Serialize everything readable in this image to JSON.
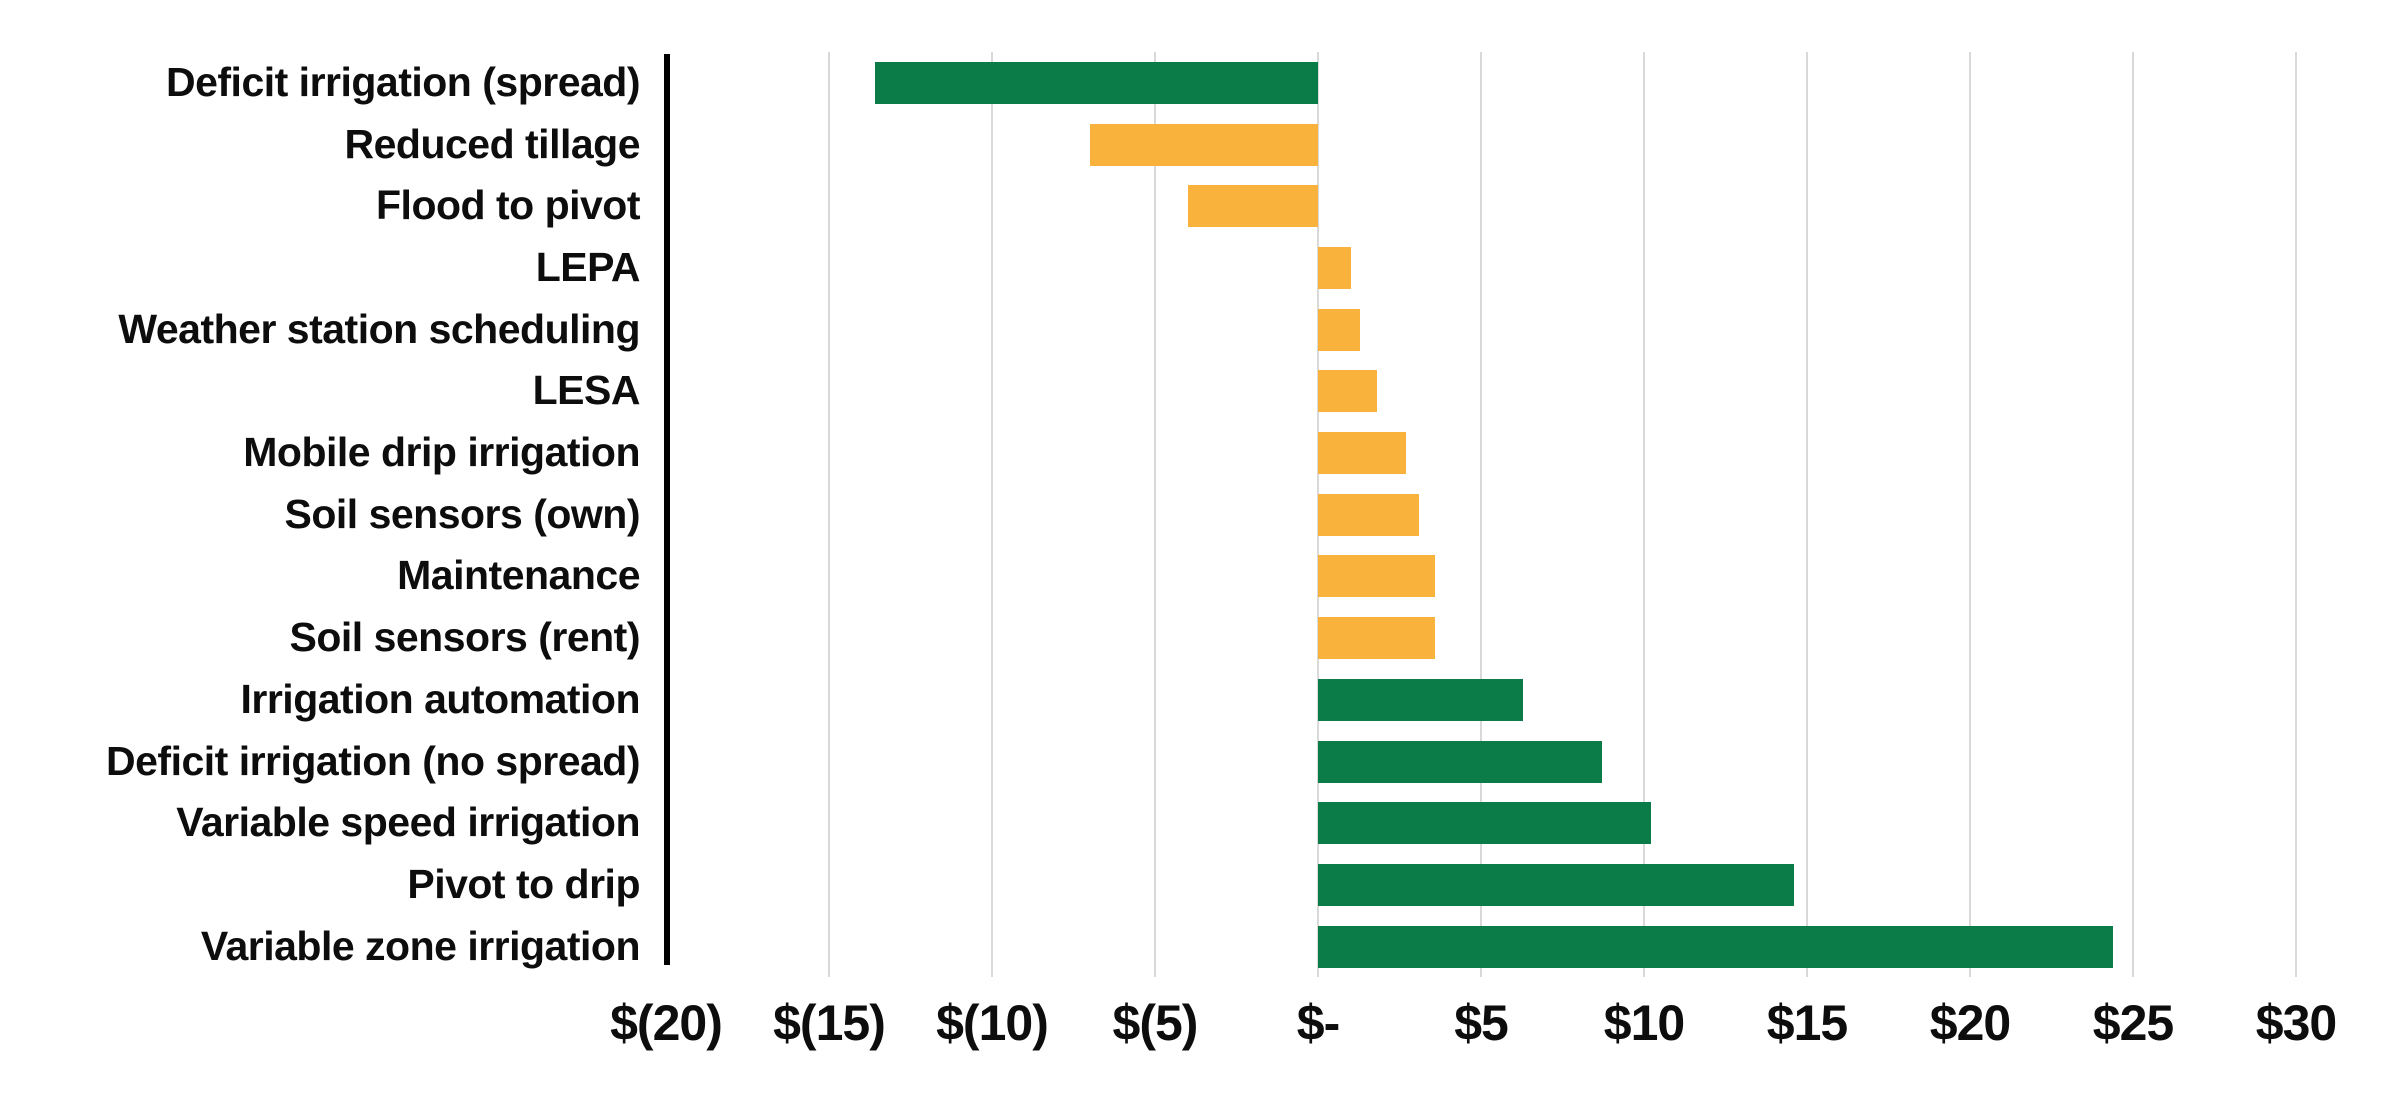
{
  "chart_data": {
    "type": "bar",
    "orientation": "horizontal",
    "title": "",
    "xlabel": "",
    "ylabel": "",
    "xlim": [
      -20,
      30
    ],
    "grid": true,
    "legend": "none",
    "categories": [
      "Deficit irrigation (spread)",
      "Reduced tillage",
      "Flood to pivot",
      "LEPA",
      "Weather station scheduling",
      "LESA",
      "Mobile drip irrigation",
      "Soil sensors (own)",
      "Maintenance",
      "Soil sensors (rent)",
      "Irrigation automation",
      "Deficit irrigation (no spread)",
      "Variable speed irrigation",
      "Pivot to drip",
      "Variable zone irrigation"
    ],
    "values": [
      -13.6,
      -7.0,
      -4.0,
      1.0,
      1.3,
      1.8,
      2.7,
      3.1,
      3.6,
      3.6,
      6.3,
      8.7,
      10.2,
      14.6,
      24.4
    ],
    "bar_colors": [
      "green",
      "gold",
      "gold",
      "gold",
      "gold",
      "gold",
      "gold",
      "gold",
      "gold",
      "gold",
      "green",
      "green",
      "green",
      "green",
      "green"
    ],
    "palette": {
      "green": "#0b7c47",
      "gold": "#f9b33c"
    },
    "x_tick_values": [
      -20,
      -15,
      -10,
      -5,
      0,
      5,
      10,
      15,
      20,
      25,
      30
    ],
    "x_tick_labels": [
      "$(20)",
      "$(15)",
      "$(10)",
      "$(5)",
      "$-",
      "$5",
      "$10",
      "$15",
      "$20",
      "$25",
      "$30"
    ],
    "axis": {
      "category_axis_line_color": "#000000",
      "gridline_color": "#d9d9d9",
      "background_color": "#ffffff",
      "text_color": "#0d0d0d"
    }
  }
}
